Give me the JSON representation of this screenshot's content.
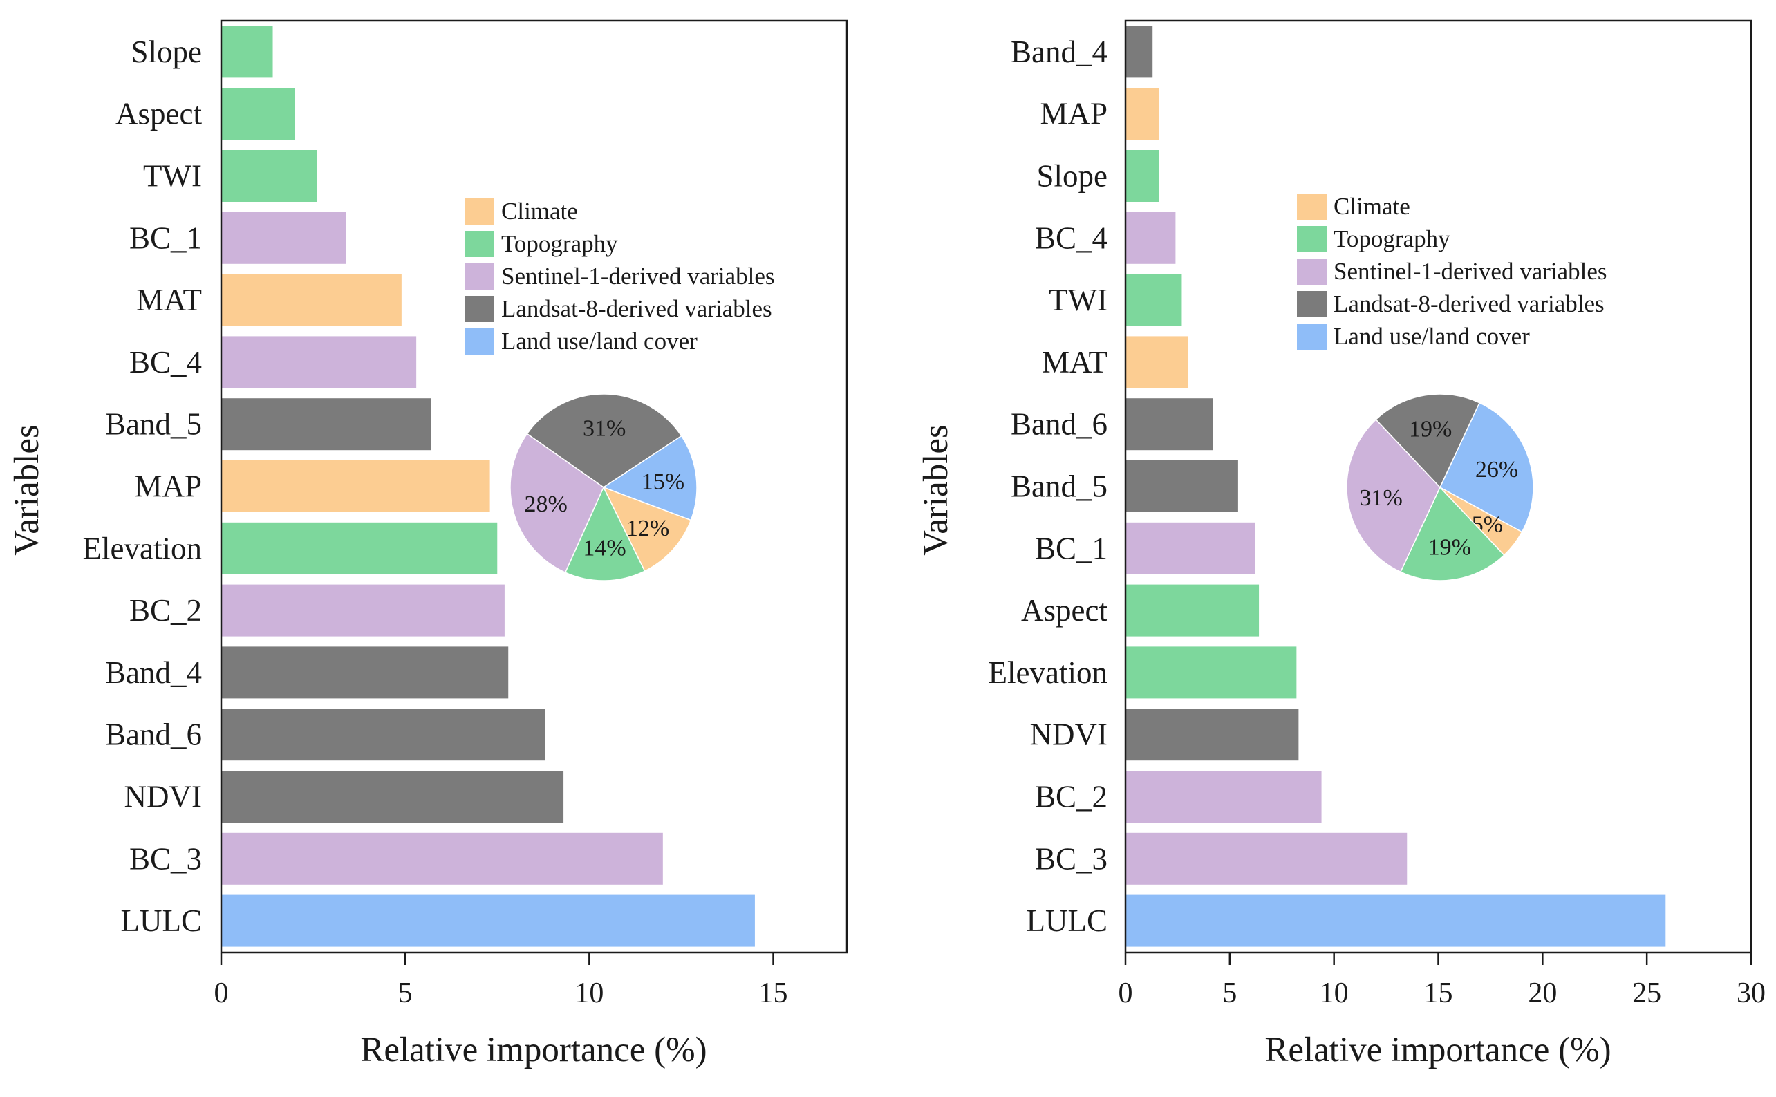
{
  "chart_data": [
    {
      "type": "bar",
      "orientation": "horizontal",
      "categories": [
        "Slope",
        "Aspect",
        "TWI",
        "BC_1",
        "MAT",
        "BC_4",
        "Band_5",
        "MAP",
        "Elevation",
        "BC_2",
        "Band_4",
        "Band_6",
        "NDVI",
        "BC_3",
        "LULC"
      ],
      "values": [
        1.4,
        2.0,
        2.6,
        3.4,
        4.9,
        5.3,
        5.7,
        7.3,
        7.5,
        7.7,
        7.8,
        8.8,
        9.3,
        12.0,
        14.5
      ],
      "groups": [
        "Topography",
        "Topography",
        "Topography",
        "Sentinel-1-derived variables",
        "Climate",
        "Sentinel-1-derived variables",
        "Landsat-8-derived variables",
        "Climate",
        "Topography",
        "Sentinel-1-derived variables",
        "Landsat-8-derived variables",
        "Landsat-8-derived variables",
        "Landsat-8-derived variables",
        "Sentinel-1-derived variables",
        "Land use/land cover"
      ],
      "xlabel": "Relative importance (%)",
      "ylabel": "Variables",
      "xlim": [
        0,
        17
      ],
      "xticks": [
        "0",
        "5",
        "10",
        "15"
      ],
      "xtick_values": [
        0,
        5,
        10,
        15
      ],
      "legend": [
        {
          "label": "Climate",
          "color": "#fccd92"
        },
        {
          "label": "Topography",
          "color": "#7dd79c"
        },
        {
          "label": "Sentinel-1-derived variables",
          "color": "#cdb3da"
        },
        {
          "label": "Landsat-8-derived variables",
          "color": "#7b7b7b"
        },
        {
          "label": "Land use/land cover",
          "color": "#8fbdf8"
        }
      ],
      "legend_position": "upper-right",
      "pie": {
        "slices": [
          {
            "group": "Landsat-8-derived variables",
            "value": 31,
            "label": "31%"
          },
          {
            "group": "Land use/land cover",
            "value": 15,
            "label": "15%"
          },
          {
            "group": "Climate",
            "value": 12,
            "label": "12%"
          },
          {
            "group": "Topography",
            "value": 14,
            "label": "14%"
          },
          {
            "group": "Sentinel-1-derived variables",
            "value": 28,
            "label": "28%"
          }
        ]
      }
    },
    {
      "type": "bar",
      "orientation": "horizontal",
      "categories": [
        "Band_4",
        "MAP",
        "Slope",
        "BC_4",
        "TWI",
        "MAT",
        "Band_6",
        "Band_5",
        "BC_1",
        "Aspect",
        "Elevation",
        "NDVI",
        "BC_2",
        "BC_3",
        "LULC"
      ],
      "values": [
        1.3,
        1.6,
        1.6,
        2.4,
        2.7,
        3.0,
        4.2,
        5.4,
        6.2,
        6.4,
        8.2,
        8.3,
        9.4,
        13.5,
        25.9
      ],
      "groups": [
        "Landsat-8-derived variables",
        "Climate",
        "Topography",
        "Sentinel-1-derived variables",
        "Topography",
        "Climate",
        "Landsat-8-derived variables",
        "Landsat-8-derived variables",
        "Sentinel-1-derived variables",
        "Topography",
        "Topography",
        "Landsat-8-derived variables",
        "Sentinel-1-derived variables",
        "Sentinel-1-derived variables",
        "Land use/land cover"
      ],
      "xlabel": "Relative importance (%)",
      "ylabel": "Variables",
      "xlim": [
        0,
        30
      ],
      "xticks": [
        "0",
        "5",
        "10",
        "15",
        "20",
        "25",
        "30"
      ],
      "xtick_values": [
        0,
        5,
        10,
        15,
        20,
        25,
        30
      ],
      "legend": [
        {
          "label": "Climate",
          "color": "#fccd92"
        },
        {
          "label": "Topography",
          "color": "#7dd79c"
        },
        {
          "label": "Sentinel-1-derived variables",
          "color": "#cdb3da"
        },
        {
          "label": "Landsat-8-derived variables",
          "color": "#7b7b7b"
        },
        {
          "label": "Land use/land cover",
          "color": "#8fbdf8"
        }
      ],
      "legend_position": "upper-right",
      "pie": {
        "slices": [
          {
            "group": "Land use/land cover",
            "value": 26,
            "label": "26%"
          },
          {
            "group": "Climate",
            "value": 5,
            "label": "5%"
          },
          {
            "group": "Topography",
            "value": 19,
            "label": "19%"
          },
          {
            "group": "Sentinel-1-derived variables",
            "value": 31,
            "label": "31%"
          },
          {
            "group": "Landsat-8-derived variables",
            "value": 19,
            "label": "19%"
          }
        ]
      }
    }
  ],
  "colors": {
    "Climate": "#fccd92",
    "Topography": "#7dd79c",
    "Sentinel-1-derived variables": "#cdb3da",
    "Landsat-8-derived variables": "#7b7b7b",
    "Land use/land cover": "#8fbdf8"
  }
}
